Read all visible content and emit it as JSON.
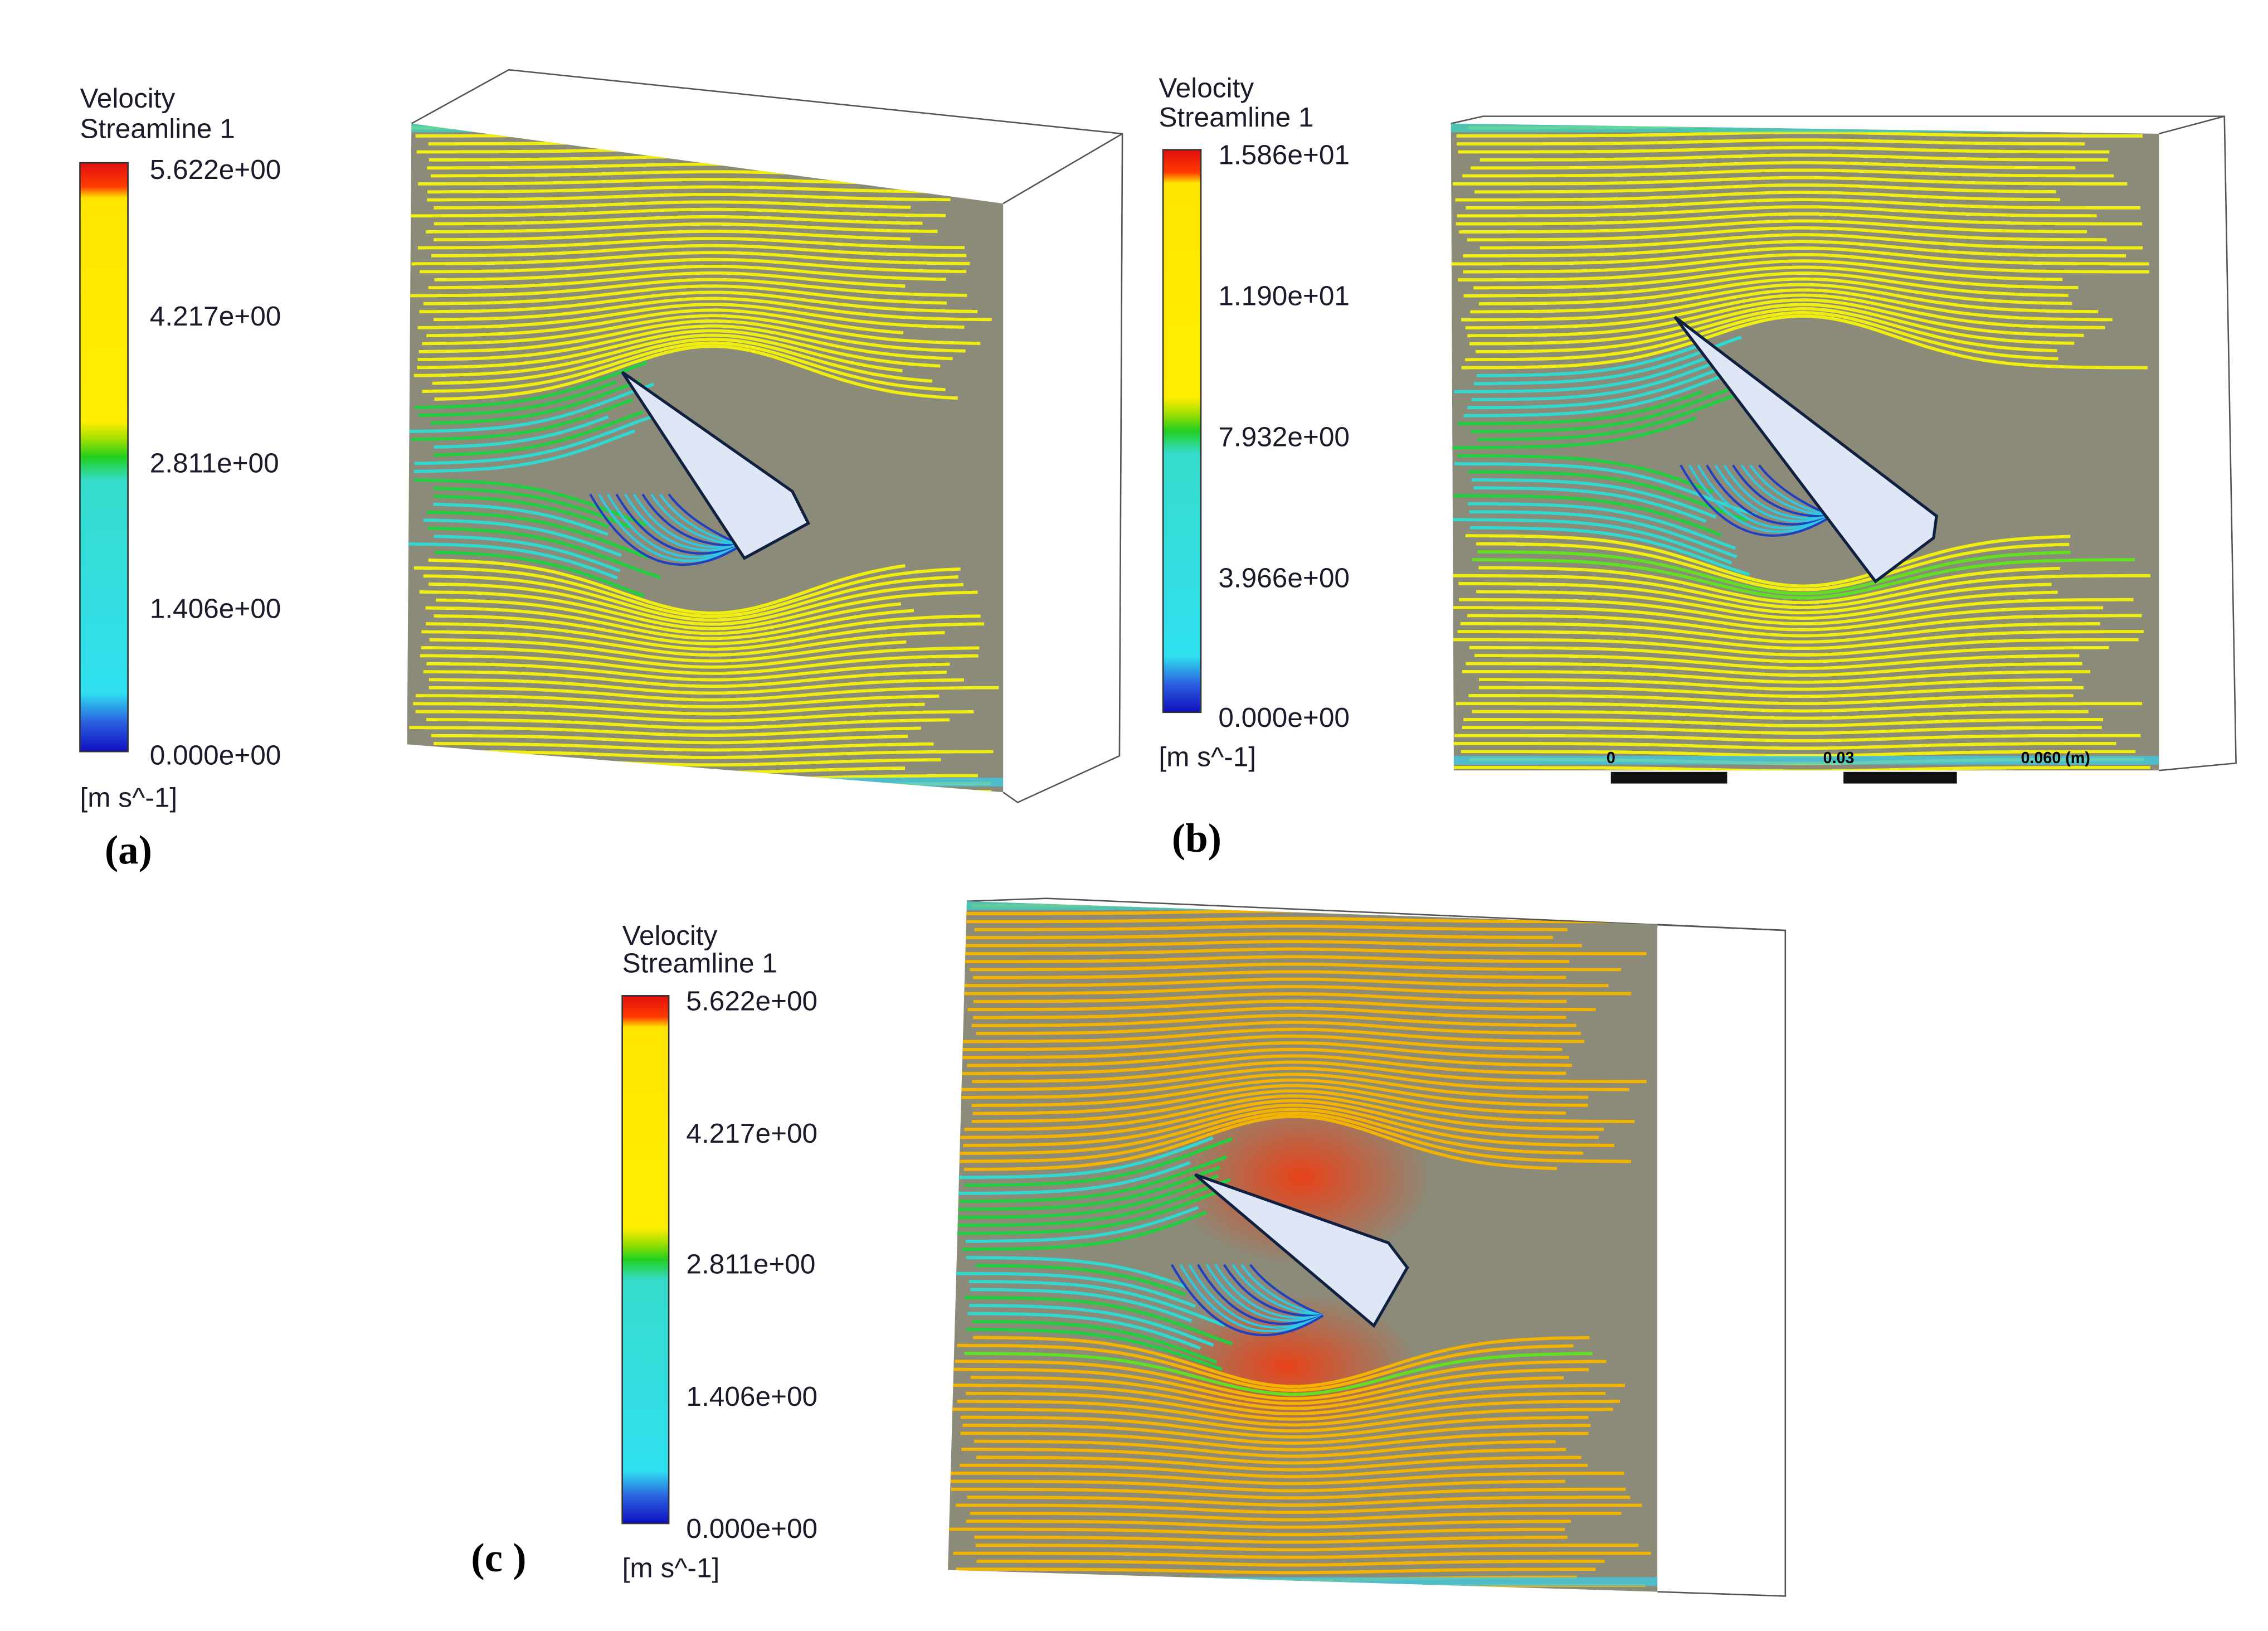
{
  "panels": [
    {
      "label": "(a)",
      "legend": {
        "title": [
          "Velocity",
          "Streamline 1"
        ],
        "ticks": [
          "5.622e+00",
          "4.217e+00",
          "2.811e+00",
          "1.406e+00",
          "0.000e+00"
        ],
        "unit": "[m s^-1]"
      }
    },
    {
      "label": "(b)",
      "legend": {
        "title": [
          "Velocity",
          "Streamline 1"
        ],
        "ticks": [
          "1.586e+01",
          "1.190e+01",
          "7.932e+00",
          "3.966e+00",
          "0.000e+00"
        ],
        "unit": "[m s^-1]"
      },
      "scale_bar": [
        "0",
        "0.03",
        "0.060 (m)"
      ]
    },
    {
      "label": "(c )",
      "legend": {
        "title": [
          "Velocity",
          "Streamline 1"
        ],
        "ticks": [
          "5.622e+00",
          "4.217e+00",
          "2.811e+00",
          "1.406e+00",
          "0.000e+00"
        ],
        "unit": "[m s^-1]"
      }
    }
  ]
}
